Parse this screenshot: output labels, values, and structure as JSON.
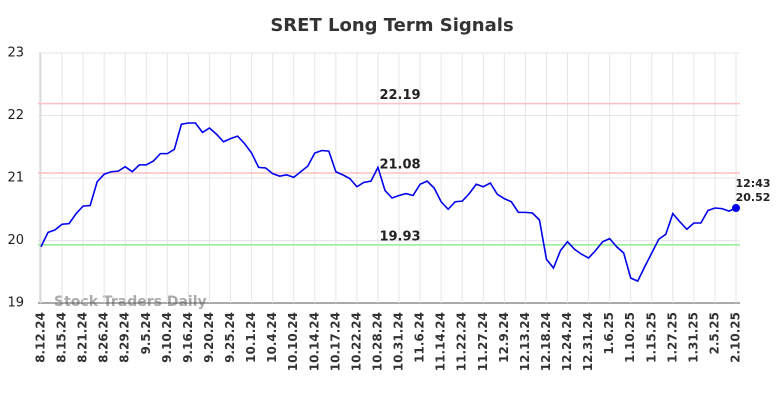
{
  "chart_data": {
    "type": "line",
    "title": "SRET Long Term Signals",
    "watermark": "Stock Traders Daily",
    "categories": [
      "8.12.24",
      null,
      null,
      "8.15.24",
      null,
      null,
      "8.21.24",
      null,
      null,
      "8.26.24",
      null,
      null,
      "8.29.24",
      null,
      null,
      "9.5.24",
      null,
      null,
      "9.10.24",
      null,
      null,
      "9.16.24",
      null,
      null,
      "9.20.24",
      null,
      null,
      "9.25.24",
      null,
      null,
      "10.1.24",
      null,
      null,
      "10.4.24",
      null,
      null,
      "10.10.24",
      null,
      null,
      "10.14.24",
      null,
      null,
      "10.17.24",
      null,
      null,
      "10.22.24",
      null,
      null,
      "10.28.24",
      null,
      null,
      "10.31.24",
      null,
      null,
      "11.6.24",
      null,
      null,
      "11.14.24",
      null,
      null,
      "11.22.24",
      null,
      null,
      "11.27.24",
      null,
      null,
      "12.9.24",
      null,
      null,
      "12.13.24",
      null,
      null,
      "12.18.24",
      null,
      null,
      "12.24.24",
      null,
      null,
      "12.31.24",
      null,
      null,
      "1.6.25",
      null,
      null,
      "1.10.25",
      null,
      null,
      "1.15.25",
      null,
      null,
      "1.27.25",
      null,
      null,
      "1.31.25",
      null,
      null,
      "2.5.25",
      null,
      null,
      "2.10.25"
    ],
    "series": [
      {
        "name": "SRET",
        "color": "#0000ee",
        "values": [
          19.9,
          20.13,
          20.17,
          20.26,
          20.27,
          20.43,
          20.55,
          20.56,
          20.94,
          21.06,
          21.1,
          21.11,
          21.18,
          21.1,
          21.21,
          21.21,
          21.27,
          21.39,
          21.39,
          21.46,
          21.86,
          21.88,
          21.88,
          21.73,
          21.8,
          21.7,
          21.58,
          21.63,
          21.67,
          21.55,
          21.4,
          21.17,
          21.16,
          21.07,
          21.03,
          21.05,
          21.01,
          21.1,
          21.19,
          21.4,
          21.44,
          21.43,
          21.1,
          21.05,
          20.99,
          20.86,
          20.93,
          20.95,
          21.17,
          20.8,
          20.68,
          20.72,
          20.75,
          20.72,
          20.9,
          20.95,
          20.84,
          20.62,
          20.5,
          20.62,
          20.63,
          20.75,
          20.9,
          20.86,
          20.92,
          20.74,
          20.67,
          20.62,
          20.45,
          20.45,
          20.44,
          20.33,
          19.7,
          19.56,
          19.84,
          19.98,
          19.86,
          19.78,
          19.72,
          19.84,
          19.98,
          20.03,
          19.9,
          19.8,
          19.4,
          19.35,
          19.58,
          19.8,
          20.02,
          20.1,
          20.43,
          20.3,
          20.18,
          20.28,
          20.28,
          20.48,
          20.52,
          20.51,
          20.47,
          20.52
        ]
      }
    ],
    "last_time": "12:43",
    "reference_lines": [
      {
        "value": 22.19,
        "color": "#ffc0c0",
        "label_color": "#8b0000"
      },
      {
        "value": 21.08,
        "color": "#ffc0c0",
        "label_color": "#8b0000"
      },
      {
        "value": 19.93,
        "color": "#90ee90",
        "label_color": "#006400"
      }
    ],
    "ylim": [
      19,
      23
    ],
    "yticks": [
      19,
      20,
      21,
      22,
      23
    ],
    "grid": true
  }
}
